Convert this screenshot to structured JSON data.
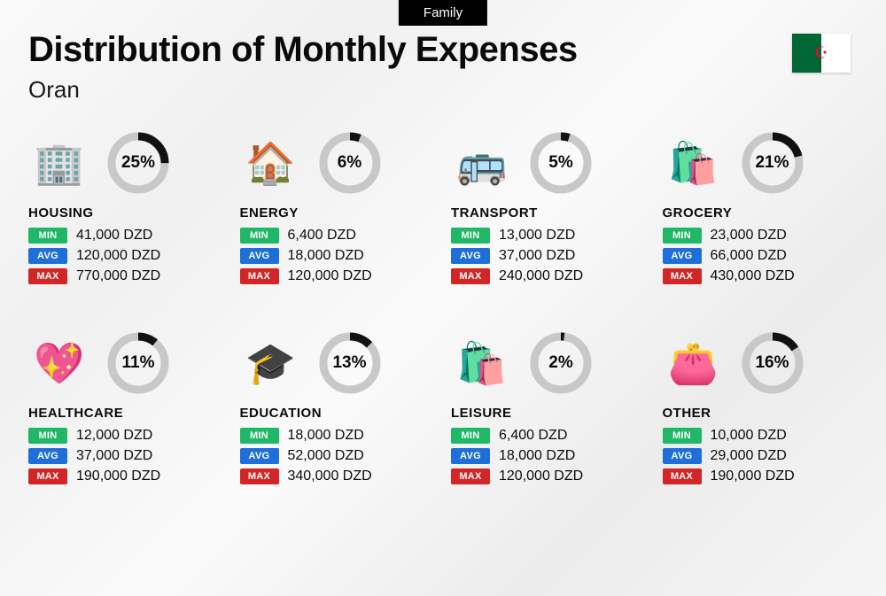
{
  "badge": "Family",
  "title": "Distribution of Monthly Expenses",
  "subtitle": "Oran",
  "currency": "DZD",
  "flag": {
    "left_color": "#006633",
    "right_color": "#ffffff",
    "emblem_color": "#d21034"
  },
  "donut": {
    "track_color": "#c8c8c8",
    "fill_color": "#111111",
    "stroke_width": 9,
    "radius": 30
  },
  "tags": {
    "min": {
      "label": "MIN",
      "bg": "#1fb866"
    },
    "avg": {
      "label": "AVG",
      "bg": "#1e6fd9"
    },
    "max": {
      "label": "MAX",
      "bg": "#d22525"
    }
  },
  "categories": [
    {
      "key": "housing",
      "name": "HOUSING",
      "icon": "🏢",
      "pct": 25,
      "min": "41,000",
      "avg": "120,000",
      "max": "770,000"
    },
    {
      "key": "energy",
      "name": "ENERGY",
      "icon": "🏠",
      "pct": 6,
      "min": "6,400",
      "avg": "18,000",
      "max": "120,000"
    },
    {
      "key": "transport",
      "name": "TRANSPORT",
      "icon": "🚌",
      "pct": 5,
      "min": "13,000",
      "avg": "37,000",
      "max": "240,000"
    },
    {
      "key": "grocery",
      "name": "GROCERY",
      "icon": "🛍️",
      "pct": 21,
      "min": "23,000",
      "avg": "66,000",
      "max": "430,000"
    },
    {
      "key": "healthcare",
      "name": "HEALTHCARE",
      "icon": "💖",
      "pct": 11,
      "min": "12,000",
      "avg": "37,000",
      "max": "190,000"
    },
    {
      "key": "education",
      "name": "EDUCATION",
      "icon": "🎓",
      "pct": 13,
      "min": "18,000",
      "avg": "52,000",
      "max": "340,000"
    },
    {
      "key": "leisure",
      "name": "LEISURE",
      "icon": "🛍️",
      "pct": 2,
      "min": "6,400",
      "avg": "18,000",
      "max": "120,000"
    },
    {
      "key": "other",
      "name": "OTHER",
      "icon": "👛",
      "pct": 16,
      "min": "10,000",
      "avg": "29,000",
      "max": "190,000"
    }
  ]
}
